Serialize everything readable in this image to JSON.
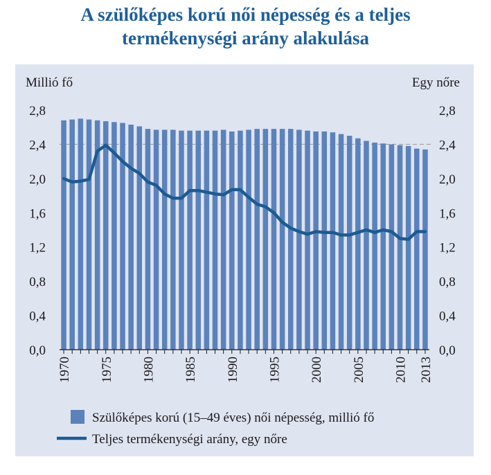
{
  "title_line1": "A szülőképes korú női népesség és a teljes",
  "title_line2": "termékenységi arány alakulása",
  "colors": {
    "title": "#1f5f98",
    "bar": "#5b82bb",
    "line": "#1d5a92",
    "panel": "#dfe4f1"
  },
  "chart_data": {
    "type": "bar",
    "ylabel_left": "Millió fő",
    "ylabel_right": "Egy nőre",
    "ylim": [
      0,
      2.8
    ],
    "yticks": [
      "0,0",
      "0,4",
      "0,8",
      "1,2",
      "1,6",
      "2,0",
      "2,4",
      "2,8"
    ],
    "yticks_right": [
      "0,0",
      "0,4",
      "0,8",
      "1,2",
      "1,6",
      "2,0",
      "2,4",
      "2,8"
    ],
    "ytick_values": [
      0,
      0.4,
      0.8,
      1.2,
      1.6,
      2.0,
      2.4,
      2.8
    ],
    "xtick_labels": [
      "1970",
      "1975",
      "1980",
      "1985",
      "1990",
      "1995",
      "2000",
      "2005",
      "2010",
      "2013"
    ],
    "xtick_years": [
      1970,
      1975,
      1980,
      1985,
      1990,
      1995,
      2000,
      2005,
      2010,
      2013
    ],
    "grid": "horizontal dashed at 2.4",
    "legend": "bottom",
    "x": [
      1970,
      1971,
      1972,
      1973,
      1974,
      1975,
      1976,
      1977,
      1978,
      1979,
      1980,
      1981,
      1982,
      1983,
      1984,
      1985,
      1986,
      1987,
      1988,
      1989,
      1990,
      1991,
      1992,
      1993,
      1994,
      1995,
      1996,
      1997,
      1998,
      1999,
      2000,
      2001,
      2002,
      2003,
      2004,
      2005,
      2006,
      2007,
      2008,
      2009,
      2010,
      2011,
      2012,
      2013
    ],
    "series": [
      {
        "name": "Szülőképes korú (15–49 éves) női népesség, millió fő",
        "kind": "bar",
        "values": [
          2.68,
          2.69,
          2.7,
          2.69,
          2.68,
          2.67,
          2.66,
          2.65,
          2.63,
          2.61,
          2.58,
          2.57,
          2.57,
          2.57,
          2.56,
          2.56,
          2.56,
          2.56,
          2.56,
          2.57,
          2.55,
          2.56,
          2.57,
          2.58,
          2.58,
          2.58,
          2.58,
          2.58,
          2.57,
          2.56,
          2.55,
          2.55,
          2.54,
          2.52,
          2.5,
          2.47,
          2.44,
          2.42,
          2.41,
          2.4,
          2.39,
          2.38,
          2.35,
          2.34
        ]
      },
      {
        "name": "Teljes termékenységi arány, egy nőre",
        "kind": "line",
        "values": [
          2.0,
          1.96,
          1.97,
          1.99,
          2.32,
          2.39,
          2.3,
          2.2,
          2.12,
          2.06,
          1.96,
          1.92,
          1.82,
          1.77,
          1.77,
          1.86,
          1.86,
          1.84,
          1.82,
          1.81,
          1.87,
          1.87,
          1.78,
          1.7,
          1.67,
          1.6,
          1.49,
          1.42,
          1.38,
          1.35,
          1.38,
          1.37,
          1.37,
          1.34,
          1.34,
          1.37,
          1.4,
          1.37,
          1.4,
          1.38,
          1.3,
          1.29,
          1.38,
          1.38
        ]
      }
    ]
  }
}
